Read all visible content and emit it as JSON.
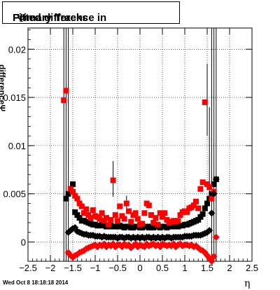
{
  "title": {
    "prefix": "Fitted difference in",
    "symbol": "Ψ",
    "suffix": "Primary Tracks"
  },
  "footer_text": "Wed Oct  8 18:18:18 2014",
  "chart_data": {
    "type": "scatter",
    "title": "Fitted difference in Ψ   Primary Tracks",
    "xlabel": "η",
    "ylabel": "differenceΨ",
    "xlim": [
      -2.5,
      2.5
    ],
    "ylim": [
      -0.002,
      0.0222
    ],
    "grid": true,
    "xticks": [
      -2.5,
      -2,
      -1.5,
      -1,
      -0.5,
      0,
      0.5,
      1,
      1.5,
      2,
      2.5
    ],
    "xtick_labels": [
      "−2.5",
      "−2",
      "−1.5",
      "−1",
      "−0.5",
      "0",
      "0.5",
      "1",
      "1.5",
      "2",
      "2.5"
    ],
    "yticks": [
      0,
      0.005,
      0.01,
      0.015,
      0.02
    ],
    "ytick_labels": [
      "0",
      "0.005",
      "0.01",
      "0.015",
      "0.02"
    ],
    "vertical_lines": [
      -1.7,
      -1.65,
      -1.6,
      1.6,
      1.65,
      1.7
    ],
    "series": [
      {
        "color": "#000000",
        "marker": "square",
        "x": [
          -1.65,
          -1.6,
          -1.55,
          -1.5,
          -1.45,
          -1.4,
          -1.35,
          -1.3,
          -1.25,
          -1.2,
          -1.15,
          -1.1,
          -1.05,
          -1.0,
          -0.95,
          -0.9,
          -0.85,
          -0.8,
          -0.75,
          -0.7,
          -0.65,
          -0.6,
          -0.55,
          -0.5,
          -0.45,
          -0.4,
          -0.35,
          -0.3,
          -0.25,
          -0.2,
          -0.15,
          -0.1,
          -0.05,
          0.0,
          0.05,
          0.1,
          0.15,
          0.2,
          0.25,
          0.3,
          0.35,
          0.4,
          0.45,
          0.5,
          0.55,
          0.6,
          0.65,
          0.7,
          0.75,
          0.8,
          0.85,
          0.9,
          0.95,
          1.0,
          1.05,
          1.1,
          1.15,
          1.2,
          1.25,
          1.3,
          1.35,
          1.4,
          1.45,
          1.5,
          1.55,
          1.6,
          1.65,
          1.7
        ],
        "y": [
          0.0045,
          0.005,
          0.0055,
          0.006,
          0.0031,
          0.0028,
          0.0025,
          0.0022,
          0.0022,
          0.0021,
          0.002,
          0.0019,
          0.0018,
          0.0018,
          0.0017,
          0.0017,
          0.0018,
          0.0017,
          0.0016,
          0.0016,
          0.0017,
          0.0016,
          0.0016,
          0.0016,
          0.0017,
          0.0016,
          0.0015,
          0.0016,
          0.0016,
          0.0015,
          0.0015,
          0.0016,
          0.0016,
          0.0015,
          0.0015,
          0.0016,
          0.0016,
          0.0015,
          0.0016,
          0.0015,
          0.0016,
          0.0016,
          0.0015,
          0.0016,
          0.0016,
          0.0015,
          0.0016,
          0.0016,
          0.0017,
          0.0016,
          0.0016,
          0.0017,
          0.0017,
          0.0018,
          0.0018,
          0.0019,
          0.002,
          0.0021,
          0.0022,
          0.0023,
          0.0026,
          0.0029,
          0.0035,
          0.004,
          0.0045,
          0.005,
          0.006,
          0.0065
        ]
      },
      {
        "color": "#ff0000",
        "marker": "square",
        "x": [
          -1.7,
          -1.65,
          -1.55,
          -1.5,
          -1.45,
          -1.4,
          -1.35,
          -1.3,
          -1.25,
          -1.2,
          -1.15,
          -1.1,
          -1.05,
          -1.0,
          -0.95,
          -0.9,
          -0.85,
          -0.8,
          -0.75,
          -0.7,
          -0.65,
          -0.6,
          -0.55,
          -0.5,
          -0.45,
          -0.4,
          -0.35,
          -0.3,
          -0.25,
          -0.2,
          -0.15,
          -0.1,
          -0.05,
          0.0,
          0.05,
          0.1,
          0.15,
          0.2,
          0.25,
          0.3,
          0.35,
          0.4,
          0.45,
          0.5,
          0.55,
          0.6,
          0.65,
          0.7,
          0.75,
          0.8,
          0.85,
          0.9,
          0.95,
          1.0,
          1.05,
          1.1,
          1.15,
          1.2,
          1.25,
          1.3,
          1.35,
          1.4,
          1.45,
          1.5,
          1.55,
          1.6,
          1.65
        ],
        "y": [
          0.0147,
          0.0157,
          0.0055,
          0.0052,
          0.0048,
          0.0045,
          0.004,
          0.0037,
          0.003,
          0.0034,
          0.0028,
          0.0025,
          0.0033,
          0.0027,
          0.0026,
          0.0024,
          0.003,
          0.0022,
          0.0025,
          0.0018,
          0.0023,
          0.0064,
          0.0028,
          0.0022,
          0.0037,
          0.0027,
          0.0024,
          0.004,
          0.0032,
          0.0021,
          0.0028,
          0.003,
          0.0024,
          0.0018,
          0.0019,
          0.003,
          0.004,
          0.0038,
          0.0028,
          0.002,
          0.0025,
          0.0018,
          0.003,
          0.0026,
          0.003,
          0.0023,
          0.002,
          0.0021,
          0.0022,
          0.0021,
          0.0022,
          0.0028,
          0.0031,
          0.0032,
          0.0031,
          0.0035,
          0.0036,
          0.0038,
          0.0042,
          0.0035,
          0.0055,
          0.0062,
          0.0145,
          0.006,
          0.0057,
          0.0045,
          0.0052
        ]
      },
      {
        "color": "#000000",
        "marker": "diamond",
        "x": [
          -1.6,
          -1.55,
          -1.5,
          -1.45,
          -1.4,
          -1.35,
          -1.3,
          -1.25,
          -1.2,
          -1.15,
          -1.1,
          -1.05,
          -1.0,
          -0.95,
          -0.9,
          -0.85,
          -0.8,
          -0.75,
          -0.7,
          -0.65,
          -0.6,
          -0.55,
          -0.5,
          -0.45,
          -0.4,
          -0.35,
          -0.3,
          -0.25,
          -0.2,
          -0.15,
          -0.1,
          -0.05,
          0.0,
          0.05,
          0.1,
          0.15,
          0.2,
          0.25,
          0.3,
          0.35,
          0.4,
          0.45,
          0.5,
          0.55,
          0.6,
          0.65,
          0.7,
          0.75,
          0.8,
          0.85,
          0.9,
          0.95,
          1.0,
          1.05,
          1.1,
          1.15,
          1.2,
          1.25,
          1.3,
          1.35,
          1.4,
          1.45,
          1.5,
          1.55,
          1.6,
          1.65,
          1.7
        ],
        "y": [
          0.001,
          0.0012,
          0.0014,
          0.0015,
          0.0011,
          0.001,
          0.0009,
          0.0008,
          0.0008,
          0.0007,
          0.0007,
          0.0007,
          0.0006,
          0.0006,
          0.0006,
          0.0005,
          0.0006,
          0.0005,
          0.0005,
          0.0005,
          0.0005,
          0.0005,
          0.0004,
          0.0005,
          0.0005,
          0.0004,
          0.0005,
          0.0005,
          0.0004,
          0.0005,
          0.0004,
          0.0005,
          0.0004,
          0.0005,
          0.0004,
          0.0005,
          0.0005,
          0.0004,
          0.0005,
          0.0004,
          0.0005,
          0.0004,
          0.0005,
          0.0004,
          0.0005,
          0.0005,
          0.0004,
          0.0005,
          0.0005,
          0.0005,
          0.0005,
          0.0005,
          0.0006,
          0.0006,
          0.0006,
          0.0006,
          0.0007,
          0.0007,
          0.0007,
          0.0007,
          0.0008,
          0.0009,
          0.001,
          0.0012,
          0.003,
          0.005,
          0.0065
        ]
      },
      {
        "color": "#ff0000",
        "marker": "diamond",
        "x": [
          -1.6,
          -1.55,
          -1.5,
          -1.45,
          -1.4,
          -1.35,
          -1.3,
          -1.25,
          -1.2,
          -1.15,
          -1.1,
          -1.05,
          -1.0,
          -0.95,
          -0.9,
          -0.85,
          -0.8,
          -0.75,
          -0.7,
          -0.65,
          -0.6,
          -0.55,
          -0.5,
          -0.45,
          -0.4,
          -0.35,
          -0.3,
          -0.25,
          -0.2,
          -0.15,
          -0.1,
          -0.05,
          0.0,
          0.05,
          0.1,
          0.15,
          0.2,
          0.25,
          0.3,
          0.35,
          0.4,
          0.45,
          0.5,
          0.55,
          0.6,
          0.65,
          0.7,
          0.75,
          0.8,
          0.85,
          0.9,
          0.95,
          1.0,
          1.05,
          1.1,
          1.15,
          1.2,
          1.25,
          1.3,
          1.35,
          1.4,
          1.45,
          1.5,
          1.55,
          1.6,
          1.65,
          1.7
        ],
        "y": [
          -0.0011,
          -0.0014,
          -0.0016,
          -0.0014,
          -0.0013,
          -0.0011,
          -0.001,
          -0.0009,
          -0.0007,
          -0.0006,
          -0.0005,
          -0.0004,
          -0.0003,
          -0.0005,
          -0.0003,
          -0.0004,
          -0.0002,
          -0.0005,
          -0.0003,
          -0.0004,
          -0.0002,
          -0.0005,
          -0.0003,
          -0.0003,
          -0.0005,
          -0.0002,
          -0.0004,
          -0.0003,
          -0.0006,
          -0.0004,
          -0.0002,
          -0.0005,
          -0.0003,
          -0.0004,
          -0.0005,
          -0.0002,
          -0.0004,
          -0.0003,
          -0.0002,
          -0.0004,
          -0.0003,
          -0.0005,
          -0.0002,
          -0.0003,
          -0.0004,
          -0.0003,
          -0.0004,
          -0.0002,
          -0.0005,
          -0.0003,
          -0.0002,
          -0.0004,
          -0.0003,
          -0.0003,
          -0.0004,
          -0.0003,
          -0.0005,
          -0.0004,
          -0.0006,
          -0.0008,
          -0.0009,
          -0.0011,
          -0.0014,
          -0.0017,
          -0.002,
          -0.0015,
          0.0005
        ]
      }
    ],
    "error_bars": [
      {
        "x": -0.6,
        "low": 0.0047,
        "high": 0.0084
      },
      {
        "x": -0.3,
        "low": 0.0035,
        "high": 0.0048
      },
      {
        "x": 1.5,
        "low": 0.011,
        "high": 0.0185
      },
      {
        "x": 1.55,
        "low": 0.004,
        "high": 0.014
      }
    ]
  }
}
